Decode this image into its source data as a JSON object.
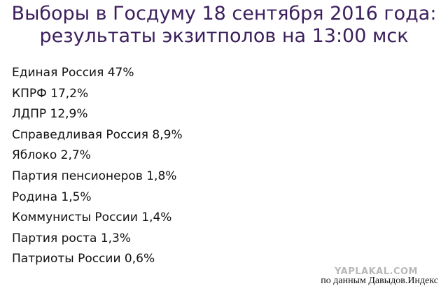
{
  "header": {
    "title_lines": [
      "Выборы в Госдуму 18 сентября 2016 года:",
      "результаты экзитполов на 13:00 мск"
    ]
  },
  "list": {
    "items": [
      "Единая Россия 47%",
      "КПРФ 17,2%",
      "ЛДПР 12,9%",
      "Справедливая Россия 8,9%",
      "Яблоко 2,7%",
      "Партия пенсионеров 1,8%",
      "Родина 1,5%",
      "Коммунисты России 1,4%",
      "Партия роста 1,3%",
      "Патриоты России 0,6%"
    ]
  },
  "footer": {
    "watermark": "YAPLAKAL.COM",
    "source": "по данным Давыдов.Индекс"
  }
}
